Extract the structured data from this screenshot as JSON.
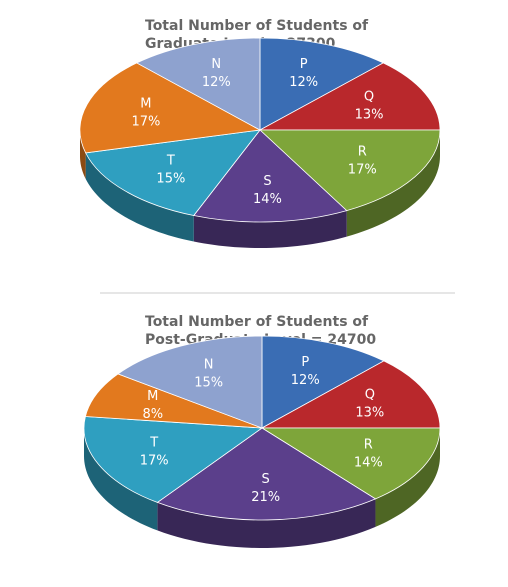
{
  "chart_data": [
    {
      "type": "pie",
      "title": [
        "Total Number of Students of",
        "Graduate Level = 27300"
      ],
      "categories": [
        "P",
        "Q",
        "R",
        "S",
        "T",
        "M",
        "N"
      ],
      "values": [
        12,
        13,
        17,
        14,
        15,
        17,
        12
      ],
      "value_labels": [
        "12%",
        "13%",
        "17%",
        "14%",
        "15%",
        "17%",
        "12%"
      ],
      "colors": [
        "#3a6db4",
        "#b9282c",
        "#7ea53a",
        "#5b3f8b",
        "#2f9fc0",
        "#e2791e",
        "#8ea2cf"
      ]
    },
    {
      "type": "pie",
      "title": [
        "Total Number of Students of",
        "Post-Graduate Level = 24700"
      ],
      "categories": [
        "P",
        "Q",
        "R",
        "S",
        "T",
        "M",
        "N"
      ],
      "values": [
        12,
        13,
        14,
        21,
        17,
        8,
        15
      ],
      "value_labels": [
        "12%",
        "13%",
        "14%",
        "21%",
        "17%",
        "8%",
        "15%"
      ],
      "colors": [
        "#3a6db4",
        "#b9282c",
        "#7ea53a",
        "#5b3f8b",
        "#2f9fc0",
        "#e2791e",
        "#8ea2cf"
      ]
    }
  ]
}
